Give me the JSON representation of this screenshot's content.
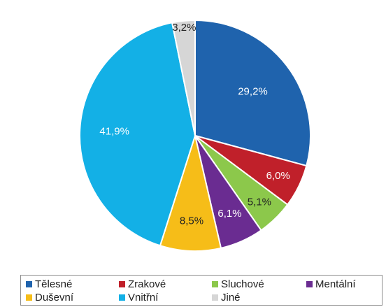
{
  "chart_data": {
    "type": "pie",
    "title": "",
    "start_angle_deg": 0,
    "direction": "clockwise",
    "slices": [
      {
        "name": "Tělesné",
        "value": 29.2,
        "label": "29,2%",
        "color": "#1f63ad",
        "label_color": "#ffffff"
      },
      {
        "name": "Zrakové",
        "value": 6.0,
        "label": "6,0%",
        "color": "#c0202a",
        "label_color": "#ffffff"
      },
      {
        "name": "Sluchové",
        "value": 5.1,
        "label": "5,1%",
        "color": "#8cc84b",
        "label_color": "#222222"
      },
      {
        "name": "Mentální",
        "value": 6.1,
        "label": "6,1%",
        "color": "#6a2c91",
        "label_color": "#ffffff"
      },
      {
        "name": "Duševní",
        "value": 8.5,
        "label": "8,5%",
        "color": "#f6bd18",
        "label_color": "#222222"
      },
      {
        "name": "Vnitřní",
        "value": 41.9,
        "label": "41,9%",
        "color": "#13b0e6",
        "label_color": "#ffffff"
      },
      {
        "name": "Jiné",
        "value": 3.2,
        "label": "3,2%",
        "color": "#d6d6d6",
        "label_color": "#222222"
      }
    ],
    "legend": {
      "position": "bottom",
      "entries": [
        "Tělesné",
        "Zrakové",
        "Sluchové",
        "Mentální",
        "Duševní",
        "Vnitřní",
        "Jiné"
      ]
    }
  }
}
